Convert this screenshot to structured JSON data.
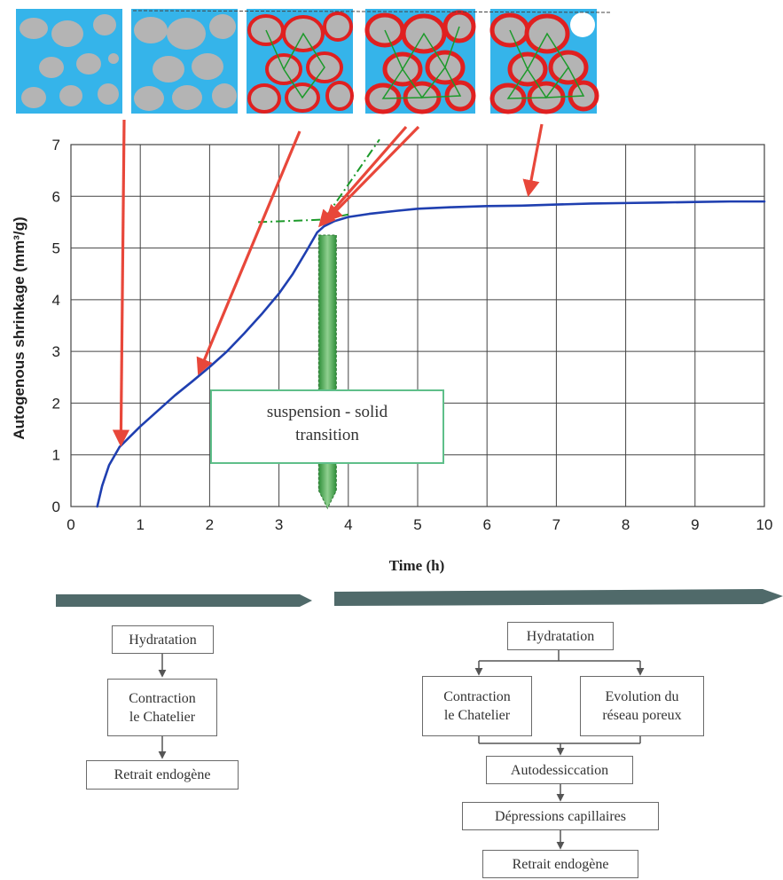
{
  "chart_data": {
    "type": "line",
    "xlabel": "Time (h)",
    "ylabel": "Autogenous shrinkage (mm³/g)",
    "xlim": [
      0,
      10
    ],
    "ylim": [
      0,
      7
    ],
    "x_ticks": [
      "0",
      "1",
      "2",
      "3",
      "4",
      "5",
      "6",
      "7",
      "8",
      "9",
      "10"
    ],
    "y_ticks": [
      "0",
      "1",
      "2",
      "3",
      "4",
      "5",
      "6",
      "7"
    ],
    "grid": true,
    "series": [
      {
        "color": "#1f3fb0",
        "x": [
          0.38,
          0.45,
          0.55,
          0.7,
          0.85,
          1.0,
          1.25,
          1.5,
          1.75,
          2.0,
          2.25,
          2.5,
          2.75,
          3.0,
          3.2,
          3.4,
          3.55,
          3.65,
          3.8,
          4.0,
          4.3,
          4.7,
          5.0,
          5.5,
          6.0,
          6.5,
          7.0,
          7.5,
          8.0,
          8.5,
          9.0,
          9.5,
          10.0
        ],
        "y": [
          0.0,
          0.4,
          0.8,
          1.15,
          1.35,
          1.55,
          1.85,
          2.15,
          2.42,
          2.7,
          3.0,
          3.35,
          3.72,
          4.12,
          4.5,
          4.95,
          5.3,
          5.42,
          5.52,
          5.6,
          5.66,
          5.72,
          5.76,
          5.79,
          5.81,
          5.82,
          5.84,
          5.86,
          5.87,
          5.88,
          5.89,
          5.9,
          5.9
        ]
      }
    ],
    "annotations": [
      {
        "text": "suspension - solid",
        "x": 3.7,
        "y": 1.95
      },
      {
        "text": "transition",
        "x": 3.7,
        "y": 1.55
      }
    ],
    "tangents": [
      {
        "x": [
          2.7,
          3.65,
          4.45
        ],
        "y": [
          5.5,
          5.55,
          7.1
        ]
      },
      {
        "x": [
          3.65,
          4.0
        ],
        "y": [
          5.55,
          5.65
        ]
      }
    ],
    "arrow_targets": [
      {
        "x": 0.72,
        "y": 1.22
      },
      {
        "x": 1.85,
        "y": 2.6
      },
      {
        "x": 3.6,
        "y": 5.45
      },
      {
        "x": 3.7,
        "y": 5.55
      },
      {
        "x": 6.6,
        "y": 6.05
      }
    ],
    "transition_time": 3.7
  },
  "phases": {
    "left": {
      "boxes": [
        "Hydratation",
        "Contraction\nle Chatelier",
        "Retrait endogène"
      ]
    },
    "right": {
      "top": "Hydratation",
      "branch_left": "Contraction\nle Chatelier",
      "branch_right": "Evolution du\nréseau poreux",
      "chain": [
        "Autodessiccation",
        "Dépressions capillaires",
        "Retrait endogène"
      ]
    }
  },
  "colors": {
    "curve": "#1f3fb0",
    "arrow": "#e8473a",
    "tangent": "#1c9a2a",
    "thumb_bg": "#35b4ea",
    "grain": "#b4b4b4",
    "network": "#e02020",
    "band": "#506a6a"
  }
}
